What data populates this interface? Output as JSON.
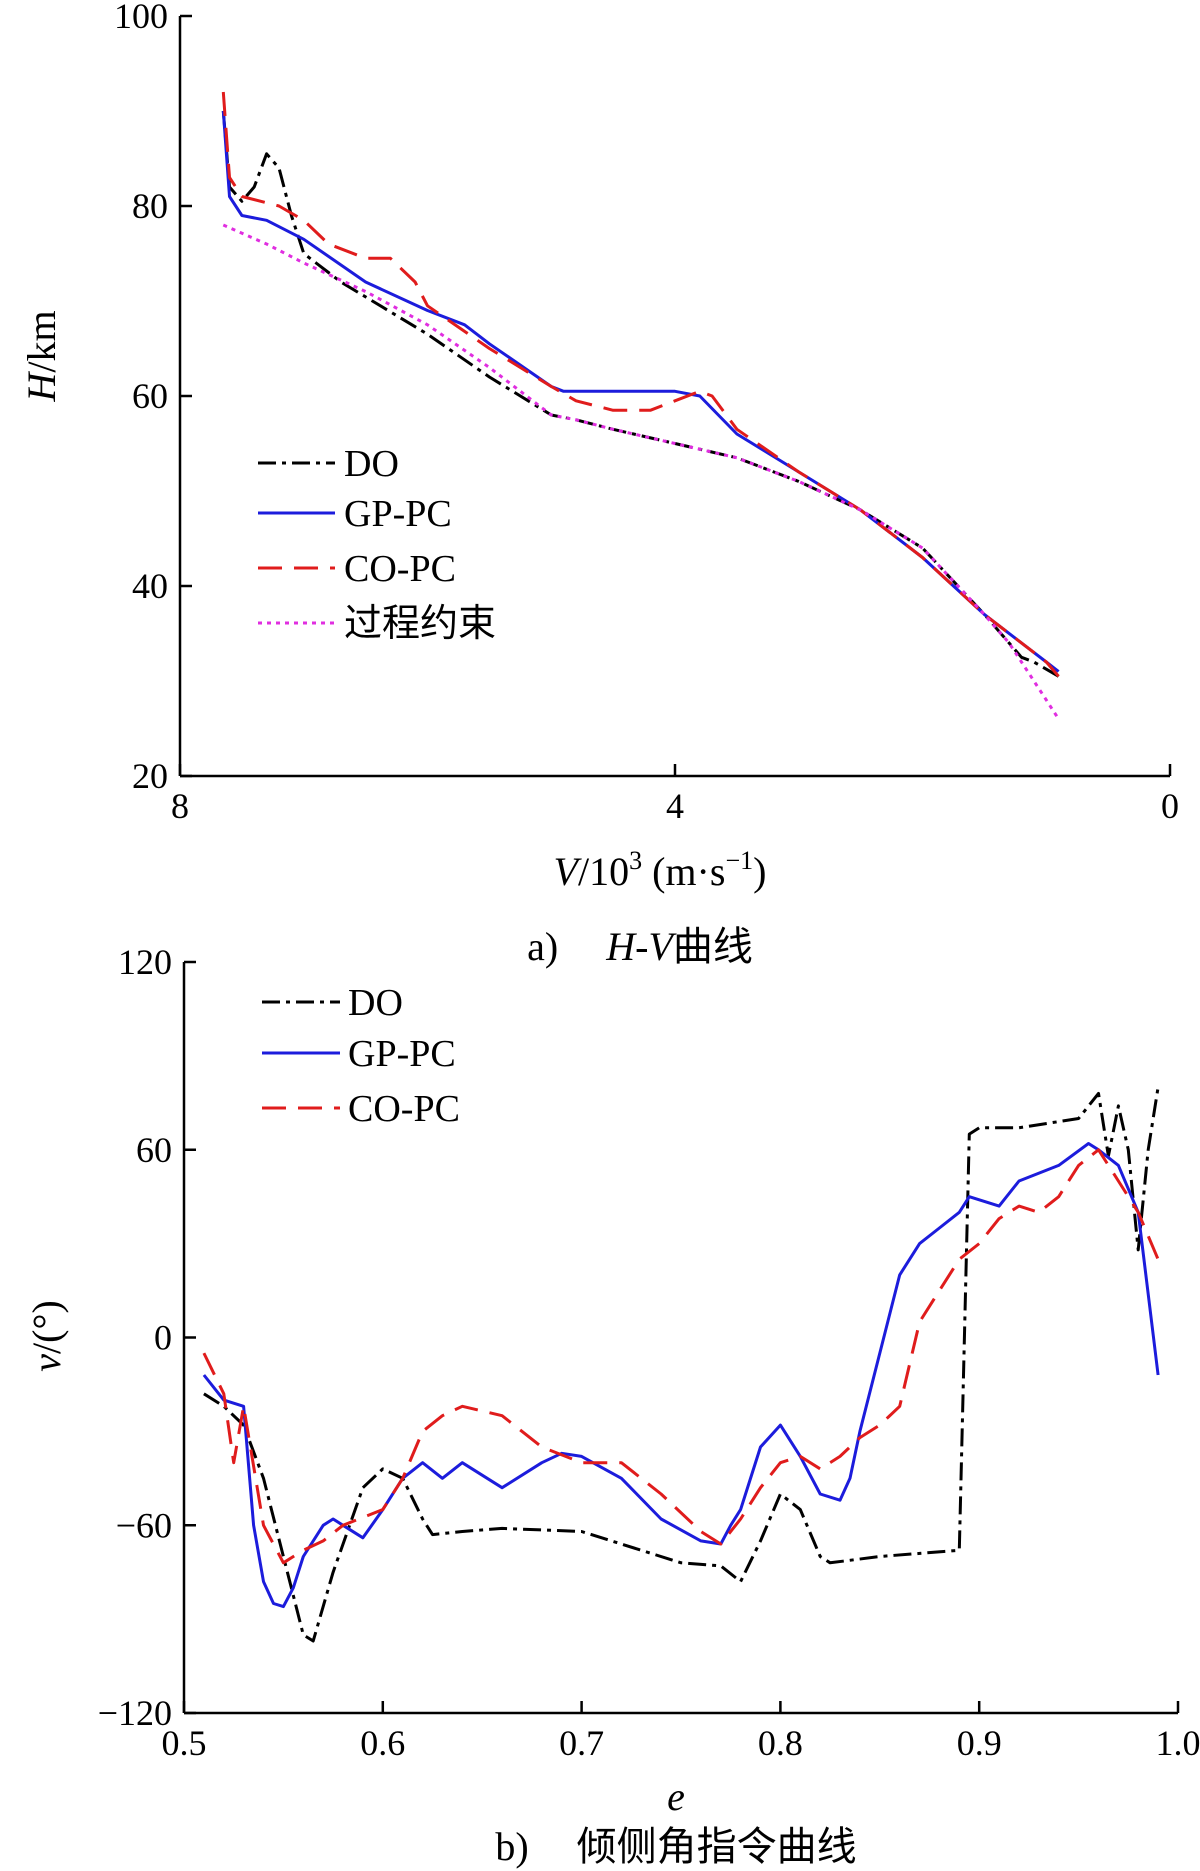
{
  "chart_data": [
    {
      "type": "line",
      "caption_prefix": "a)",
      "caption_italic": "H-V",
      "caption_suffix": "曲线",
      "xlabel_italic": "V",
      "xlabel_mid": "/10",
      "xlabel_exp": "3",
      "xlabel_unit_open": "(m·s",
      "xlabel_unit_exp": "−1",
      "xlabel_unit_close": ")",
      "ylabel_italic": "H",
      "ylabel_rest": "/km",
      "xlim": [
        8,
        0
      ],
      "ylim": [
        20,
        100
      ],
      "xticks": [
        8,
        4,
        0
      ],
      "xtick_labels": [
        "8",
        "4",
        "0"
      ],
      "yticks": [
        20,
        40,
        60,
        80,
        100
      ],
      "ytick_labels": [
        "20",
        "40",
        "60",
        "80",
        "100"
      ],
      "legend": [
        "DO",
        "GP-PC",
        "CO-PC",
        "过程约束"
      ],
      "series": [
        {
          "name": "DO",
          "color": "#000000",
          "dash": "18 6 4 6",
          "x": [
            7.65,
            7.6,
            7.5,
            7.4,
            7.3,
            7.2,
            7.1,
            7.0,
            6.9,
            6.7,
            6.0,
            5.5,
            5.0,
            4.8,
            4.5,
            4.0,
            3.5,
            3.0,
            2.5,
            2.0,
            1.5,
            1.3,
            1.2,
            1.1,
            0.9
          ],
          "y": [
            90,
            82,
            80.5,
            82,
            85.5,
            84,
            79,
            75,
            74,
            72,
            66.5,
            62,
            58,
            57.5,
            56.5,
            55,
            53.5,
            51,
            48,
            44,
            37,
            34,
            32.5,
            32,
            30.5
          ]
        },
        {
          "name": "GP-PC",
          "color": "#1c1cdc",
          "dash": "",
          "x": [
            7.65,
            7.6,
            7.5,
            7.3,
            7.0,
            6.5,
            6.0,
            5.7,
            5.5,
            5.0,
            4.9,
            4.5,
            4.0,
            3.8,
            3.5,
            3.0,
            2.5,
            2.0,
            1.5,
            1.0,
            0.9
          ],
          "y": [
            90,
            81,
            79,
            78.5,
            76.5,
            72,
            69,
            67.5,
            65.5,
            61,
            60.5,
            60.5,
            60.5,
            60,
            56,
            52,
            48,
            43,
            37,
            32,
            31
          ]
        },
        {
          "name": "CO-PC",
          "color": "#e01c1c",
          "dash": "24 12",
          "x": [
            7.65,
            7.6,
            7.5,
            7.2,
            7.0,
            6.8,
            6.5,
            6.3,
            6.1,
            6.0,
            5.5,
            5.0,
            4.8,
            4.5,
            4.2,
            4.0,
            3.8,
            3.7,
            3.5,
            3.0,
            2.5,
            2.0,
            1.5,
            1.0,
            0.9
          ],
          "y": [
            92,
            83,
            81,
            80,
            78.5,
            76,
            74.5,
            74.5,
            72,
            69.5,
            65,
            61,
            59.5,
            58.5,
            58.5,
            59.5,
            60.5,
            60,
            56.5,
            52,
            48,
            43,
            37,
            32,
            30.5
          ]
        },
        {
          "name": "过程约束",
          "color": "#e02ee0",
          "dash": "4 5",
          "x": [
            7.65,
            7.3,
            7.0,
            6.5,
            6.0,
            5.5,
            5.0,
            4.8,
            4.5,
            4.0,
            3.5,
            3.0,
            2.5,
            2.0,
            1.5,
            1.3,
            1.1,
            1.0,
            0.9
          ],
          "y": [
            78,
            76,
            74,
            71,
            67.5,
            63,
            58,
            57.5,
            56.5,
            55,
            53.5,
            51,
            48,
            44,
            37,
            34,
            30,
            28,
            26
          ]
        }
      ]
    },
    {
      "type": "line",
      "caption_prefix": "b)",
      "caption_text": "倾侧角指令曲线",
      "xlabel_italic": "e",
      "ylabel_italic": "ν",
      "ylabel_rest": "/(°)",
      "xlim": [
        0.5,
        1.0
      ],
      "ylim": [
        -120,
        120
      ],
      "xticks": [
        0.5,
        0.6,
        0.7,
        0.8,
        0.9,
        1.0
      ],
      "xtick_labels": [
        "0.5",
        "0.6",
        "0.7",
        "0.8",
        "0.9",
        "1.0"
      ],
      "yticks": [
        -120,
        -60,
        0,
        60,
        120
      ],
      "ytick_labels": [
        "−120",
        "−60",
        "0",
        "60",
        "120"
      ],
      "legend": [
        "DO",
        "GP-PC",
        "CO-PC"
      ],
      "series": [
        {
          "name": "DO",
          "color": "#000000",
          "dash": "18 6 4 6",
          "x": [
            0.51,
            0.52,
            0.53,
            0.54,
            0.55,
            0.56,
            0.565,
            0.575,
            0.59,
            0.6,
            0.61,
            0.62,
            0.625,
            0.64,
            0.66,
            0.7,
            0.75,
            0.77,
            0.78,
            0.79,
            0.8,
            0.81,
            0.82,
            0.825,
            0.85,
            0.89,
            0.895,
            0.9,
            0.92,
            0.95,
            0.96,
            0.965,
            0.97,
            0.975,
            0.98,
            0.985,
            0.99
          ],
          "y": [
            -18,
            -22,
            -28,
            -45,
            -70,
            -95,
            -97,
            -75,
            -48,
            -42,
            -45,
            -58,
            -63,
            -62,
            -61,
            -62,
            -72,
            -73,
            -78,
            -65,
            -50,
            -55,
            -70,
            -72,
            -70,
            -68,
            65,
            67,
            67,
            70,
            78,
            58,
            74,
            60,
            28,
            60,
            80
          ]
        },
        {
          "name": "GP-PC",
          "color": "#1c1cdc",
          "dash": "",
          "x": [
            0.51,
            0.52,
            0.53,
            0.535,
            0.54,
            0.545,
            0.55,
            0.555,
            0.56,
            0.57,
            0.575,
            0.58,
            0.59,
            0.6,
            0.61,
            0.62,
            0.63,
            0.64,
            0.66,
            0.68,
            0.69,
            0.7,
            0.72,
            0.74,
            0.76,
            0.77,
            0.775,
            0.78,
            0.79,
            0.8,
            0.81,
            0.82,
            0.83,
            0.835,
            0.84,
            0.86,
            0.87,
            0.88,
            0.89,
            0.895,
            0.91,
            0.92,
            0.94,
            0.955,
            0.96,
            0.97,
            0.98,
            0.99
          ],
          "y": [
            -12,
            -20,
            -22,
            -60,
            -78,
            -85,
            -86,
            -80,
            -70,
            -60,
            -58,
            -60,
            -64,
            -55,
            -45,
            -40,
            -45,
            -40,
            -48,
            -40,
            -37,
            -38,
            -45,
            -58,
            -65,
            -66,
            -60,
            -55,
            -35,
            -28,
            -38,
            -50,
            -52,
            -45,
            -30,
            20,
            30,
            35,
            40,
            45,
            42,
            50,
            55,
            62,
            60,
            55,
            40,
            -12
          ]
        },
        {
          "name": "CO-PC",
          "color": "#e01c1c",
          "dash": "24 12",
          "x": [
            0.51,
            0.52,
            0.525,
            0.53,
            0.54,
            0.55,
            0.56,
            0.57,
            0.58,
            0.6,
            0.61,
            0.62,
            0.63,
            0.64,
            0.66,
            0.68,
            0.7,
            0.72,
            0.74,
            0.76,
            0.77,
            0.78,
            0.79,
            0.8,
            0.81,
            0.82,
            0.83,
            0.84,
            0.85,
            0.86,
            0.87,
            0.88,
            0.89,
            0.9,
            0.91,
            0.92,
            0.93,
            0.94,
            0.95,
            0.96,
            0.97,
            0.98,
            0.99
          ],
          "y": [
            -5,
            -18,
            -40,
            -22,
            -60,
            -72,
            -68,
            -65,
            -60,
            -55,
            -45,
            -30,
            -25,
            -22,
            -25,
            -35,
            -40,
            -40,
            -50,
            -62,
            -66,
            -58,
            -48,
            -40,
            -38,
            -42,
            -38,
            -32,
            -28,
            -22,
            5,
            15,
            25,
            30,
            38,
            42,
            40,
            45,
            55,
            60,
            50,
            40,
            25
          ]
        }
      ]
    }
  ]
}
